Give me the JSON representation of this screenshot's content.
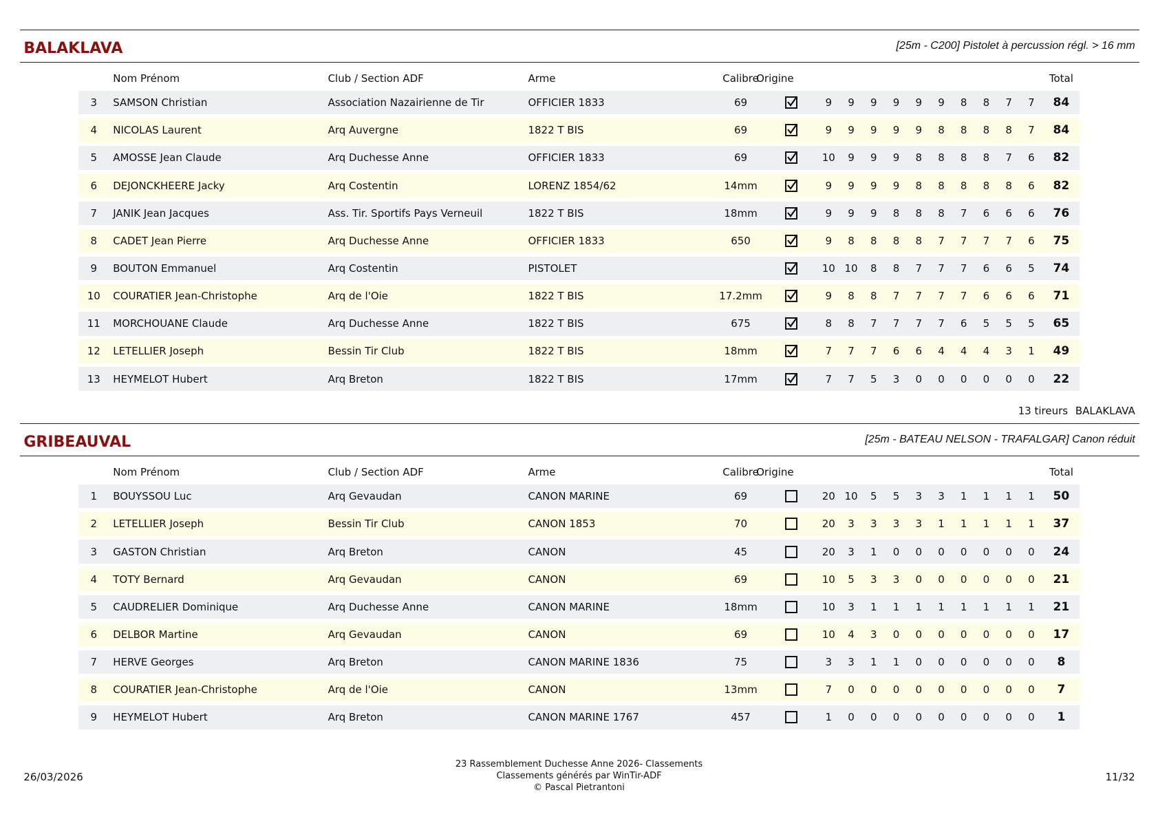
{
  "sections": [
    {
      "title": "BALAKLAVA",
      "subtitle": "[25m - C200] Pistolet à percussion régl. > 16 mm",
      "headers": [
        "Nom Prénom",
        "Club / Section ADF",
        "Arme",
        "Calibre",
        "Origine",
        "Total"
      ],
      "rows": [
        {
          "rank": 3,
          "name": "SAMSON Christian",
          "club": "Association Nazairienne de Tir",
          "arme": "OFFICIER 1833",
          "calibre": "69",
          "origine": true,
          "scores": [
            9,
            9,
            9,
            9,
            9,
            9,
            8,
            8,
            7,
            7
          ],
          "total": 84
        },
        {
          "rank": 4,
          "name": "NICOLAS Laurent",
          "club": "Arq Auvergne",
          "arme": "1822 T BIS",
          "calibre": "69",
          "origine": true,
          "scores": [
            9,
            9,
            9,
            9,
            9,
            8,
            8,
            8,
            8,
            7
          ],
          "total": 84
        },
        {
          "rank": 5,
          "name": "AMOSSE Jean Claude",
          "club": "Arq Duchesse Anne",
          "arme": "OFFICIER 1833",
          "calibre": "69",
          "origine": true,
          "scores": [
            10,
            9,
            9,
            9,
            8,
            8,
            8,
            8,
            7,
            6
          ],
          "total": 82
        },
        {
          "rank": 6,
          "name": "DEJONCKHEERE Jacky",
          "club": "Arq Costentin",
          "arme": "LORENZ 1854/62",
          "calibre": "14mm",
          "origine": true,
          "scores": [
            9,
            9,
            9,
            9,
            8,
            8,
            8,
            8,
            8,
            6
          ],
          "total": 82
        },
        {
          "rank": 7,
          "name": "JANIK Jean Jacques",
          "club": "Ass. Tir. Sportifs Pays Verneuil",
          "arme": "1822 T BIS",
          "calibre": "18mm",
          "origine": true,
          "scores": [
            9,
            9,
            9,
            8,
            8,
            8,
            7,
            6,
            6,
            6
          ],
          "total": 76
        },
        {
          "rank": 8,
          "name": "CADET Jean Pierre",
          "club": "Arq Duchesse Anne",
          "arme": "OFFICIER 1833",
          "calibre": "650",
          "origine": true,
          "scores": [
            9,
            8,
            8,
            8,
            8,
            7,
            7,
            7,
            7,
            6
          ],
          "total": 75
        },
        {
          "rank": 9,
          "name": "BOUTON Emmanuel",
          "club": "Arq Costentin",
          "arme": "PISTOLET",
          "calibre": null,
          "origine": true,
          "scores": [
            10,
            10,
            8,
            8,
            7,
            7,
            7,
            6,
            6,
            5
          ],
          "total": 74
        },
        {
          "rank": 10,
          "name": "COURATIER Jean-Christophe",
          "club": "Arq de l'Oie",
          "arme": "1822 T BIS",
          "calibre": "17.2mm",
          "origine": true,
          "scores": [
            9,
            8,
            8,
            7,
            7,
            7,
            7,
            6,
            6,
            6
          ],
          "total": 71
        },
        {
          "rank": 11,
          "name": "MORCHOUANE Claude",
          "club": "Arq Duchesse Anne",
          "arme": "1822 T BIS",
          "calibre": "675",
          "origine": true,
          "scores": [
            8,
            8,
            7,
            7,
            7,
            7,
            6,
            5,
            5,
            5
          ],
          "total": 65
        },
        {
          "rank": 12,
          "name": "LETELLIER Joseph",
          "club": "Bessin Tir Club",
          "arme": "1822 T BIS",
          "calibre": "18mm",
          "origine": true,
          "scores": [
            7,
            7,
            7,
            6,
            6,
            4,
            4,
            4,
            3,
            1
          ],
          "total": 49
        },
        {
          "rank": 13,
          "name": "HEYMELOT Hubert",
          "club": "Arq Breton",
          "arme": "1822 T BIS",
          "calibre": "17mm",
          "origine": true,
          "scores": [
            7,
            7,
            5,
            3,
            0,
            0,
            0,
            0,
            0,
            0
          ],
          "total": 22
        }
      ],
      "summary": {
        "count": "13 tireurs",
        "name": "BALAKLAVA"
      }
    },
    {
      "title": "GRIBEAUVAL",
      "subtitle": "[25m - BATEAU NELSON - TRAFALGAR] Canon réduit",
      "headers": [
        "Nom Prénom",
        "Club / Section ADF",
        "Arme",
        "Calibre",
        "Origine",
        "Total"
      ],
      "rows": [
        {
          "rank": 1,
          "name": "BOUYSSOU Luc",
          "club": "Arq Gevaudan",
          "arme": "CANON MARINE",
          "calibre": "69",
          "origine": false,
          "scores": [
            20,
            10,
            5,
            5,
            3,
            3,
            1,
            1,
            1,
            1
          ],
          "total": 50
        },
        {
          "rank": 2,
          "name": "LETELLIER Joseph",
          "club": "Bessin Tir Club",
          "arme": "CANON 1853",
          "calibre": "70",
          "origine": false,
          "scores": [
            20,
            3,
            3,
            3,
            3,
            1,
            1,
            1,
            1,
            1
          ],
          "total": 37
        },
        {
          "rank": 3,
          "name": "GASTON Christian",
          "club": "Arq Breton",
          "arme": "CANON",
          "calibre": "45",
          "origine": false,
          "scores": [
            20,
            3,
            1,
            0,
            0,
            0,
            0,
            0,
            0,
            0
          ],
          "total": 24
        },
        {
          "rank": 4,
          "name": "TOTY Bernard",
          "club": "Arq Gevaudan",
          "arme": "CANON",
          "calibre": "69",
          "origine": false,
          "scores": [
            10,
            5,
            3,
            3,
            0,
            0,
            0,
            0,
            0,
            0
          ],
          "total": 21
        },
        {
          "rank": 5,
          "name": "CAUDRELIER Dominique",
          "club": "Arq Duchesse Anne",
          "arme": "CANON MARINE",
          "calibre": "18mm",
          "origine": false,
          "scores": [
            10,
            3,
            1,
            1,
            1,
            1,
            1,
            1,
            1,
            1
          ],
          "total": 21
        },
        {
          "rank": 6,
          "name": "DELBOR Martine",
          "club": "Arq Gevaudan",
          "arme": "CANON",
          "calibre": "69",
          "origine": false,
          "scores": [
            10,
            4,
            3,
            0,
            0,
            0,
            0,
            0,
            0,
            0
          ],
          "total": 17
        },
        {
          "rank": 7,
          "name": "HERVE Georges",
          "club": "Arq Breton",
          "arme": "CANON MARINE 1836",
          "calibre": "75",
          "origine": false,
          "scores": [
            3,
            3,
            1,
            1,
            0,
            0,
            0,
            0,
            0,
            0
          ],
          "total": 8
        },
        {
          "rank": 8,
          "name": "COURATIER Jean-Christophe",
          "club": "Arq de l'Oie",
          "arme": "CANON",
          "calibre": "13mm",
          "origine": false,
          "scores": [
            7,
            0,
            0,
            0,
            0,
            0,
            0,
            0,
            0,
            0
          ],
          "total": 7
        },
        {
          "rank": 9,
          "name": "HEYMELOT Hubert",
          "club": "Arq Breton",
          "arme": "CANON MARINE 1767",
          "calibre": "457",
          "origine": false,
          "scores": [
            1,
            0,
            0,
            0,
            0,
            0,
            0,
            0,
            0,
            0
          ],
          "total": 1
        }
      ]
    }
  ],
  "footer": {
    "date": "26/03/2026",
    "lines": [
      "23 Rassemblement Duchesse Anne 2026- Classements",
      "Classements générés par WinTir-ADF",
      "© Pascal Pietrantoni"
    ],
    "page": "11/32"
  }
}
